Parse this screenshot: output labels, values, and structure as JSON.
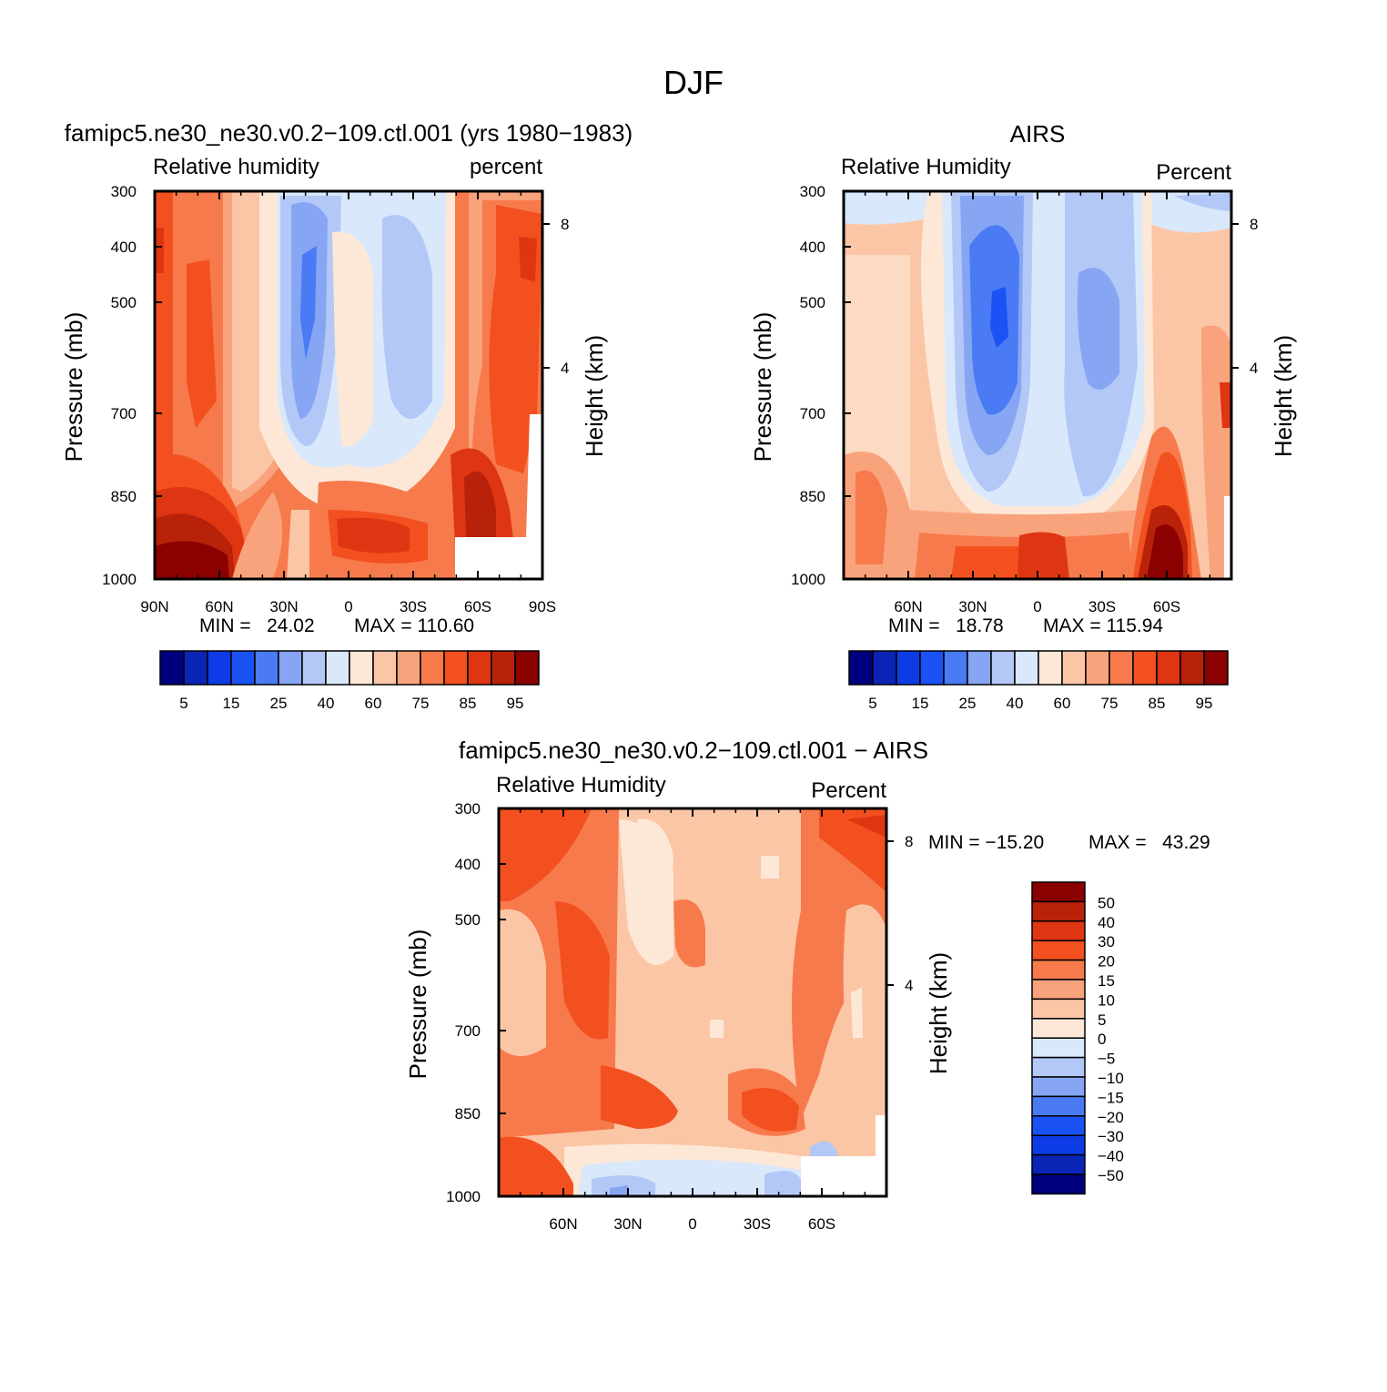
{
  "figure_title": "DJF",
  "colorbar_levels": [
    "5",
    "15",
    "25",
    "40",
    "60",
    "75",
    "85",
    "95"
  ],
  "diff_colorbar_levels": [
    "50",
    "40",
    "30",
    "20",
    "15",
    "10",
    "5",
    "0",
    "−5",
    "−10",
    "−15",
    "−20",
    "−30",
    "−40",
    "−50"
  ],
  "palette": [
    "#00007f",
    "#0a25b5",
    "#0d3ce6",
    "#1a52f5",
    "#4a7af4",
    "#86a6f4",
    "#b3c8f7",
    "#d9e8fb",
    "#fde8d7",
    "#fbc6a6",
    "#f9a37c",
    "#f77a4c",
    "#f3501f",
    "#de3612",
    "#b8220a",
    "#8b0000"
  ],
  "panels": {
    "model": {
      "title": "famipc5.ne30_ne30.v0.2−109.ctl.001 (yrs 1980−1983)",
      "left_label": "Relative humidity",
      "right_label": "percent",
      "y_axis_label": "Pressure (mb)",
      "y2_axis_label": "Height (km)",
      "pressure_ticks": [
        "300",
        "400",
        "500",
        "700",
        "850",
        "1000"
      ],
      "height_ticks": [
        "8",
        "4"
      ],
      "lat_ticks": [
        "90N",
        "60N",
        "30N",
        "0",
        "30S",
        "60S",
        "90S"
      ],
      "min_text": "MIN =   24.02",
      "max_text": "MAX = 110.60"
    },
    "obs": {
      "title": "AIRS",
      "left_label": "Relative Humidity",
      "right_label": "Percent",
      "y_axis_label": "Pressure (mb)",
      "y2_axis_label": "Height (km)",
      "pressure_ticks": [
        "300",
        "400",
        "500",
        "700",
        "850",
        "1000"
      ],
      "height_ticks": [
        "8",
        "4"
      ],
      "lat_ticks": [
        "60N",
        "30N",
        "0",
        "30S",
        "60S"
      ],
      "min_text": "MIN =   18.78",
      "max_text": "MAX = 115.94"
    },
    "diff": {
      "title": "famipc5.ne30_ne30.v0.2−109.ctl.001 − AIRS",
      "left_label": "Relative Humidity",
      "right_label": "Percent",
      "y_axis_label": "Pressure (mb)",
      "y2_axis_label": "Height (km)",
      "pressure_ticks": [
        "300",
        "400",
        "500",
        "700",
        "850",
        "1000"
      ],
      "height_ticks": [
        "8",
        "4"
      ],
      "lat_ticks": [
        "60N",
        "30N",
        "0",
        "30S",
        "60S"
      ],
      "min_text": "MIN = −15.20",
      "max_text": "MAX =   43.29"
    }
  },
  "chart_data": [
    {
      "type": "heatmap",
      "title": "famipc5.ne30_ne30.v0.2−109.ctl.001 (yrs 1980−1983)",
      "variable": "Relative humidity",
      "units": "percent",
      "xlabel": "",
      "ylabel": "Pressure (mb)",
      "y2label": "Height (km)",
      "xlim": [
        -90,
        90
      ],
      "ylim": [
        1000,
        300
      ],
      "levels": [
        5,
        15,
        25,
        40,
        60,
        75,
        85,
        95
      ],
      "min": 24.02,
      "max": 110.6
    },
    {
      "type": "heatmap",
      "title": "AIRS",
      "variable": "Relative Humidity",
      "units": "Percent",
      "xlabel": "",
      "ylabel": "Pressure (mb)",
      "y2label": "Height (km)",
      "xlim": [
        -90,
        90
      ],
      "ylim": [
        1000,
        300
      ],
      "levels": [
        5,
        15,
        25,
        40,
        60,
        75,
        85,
        95
      ],
      "min": 18.78,
      "max": 115.94
    },
    {
      "type": "heatmap",
      "title": "famipc5.ne30_ne30.v0.2−109.ctl.001 − AIRS",
      "variable": "Relative Humidity",
      "units": "Percent",
      "xlabel": "",
      "ylabel": "Pressure (mb)",
      "y2label": "Height (km)",
      "xlim": [
        -90,
        90
      ],
      "ylim": [
        1000,
        300
      ],
      "levels": [
        -50,
        -40,
        -30,
        -20,
        -15,
        -10,
        -5,
        0,
        5,
        10,
        15,
        20,
        30,
        40,
        50
      ],
      "min": -15.2,
      "max": 43.29
    }
  ]
}
